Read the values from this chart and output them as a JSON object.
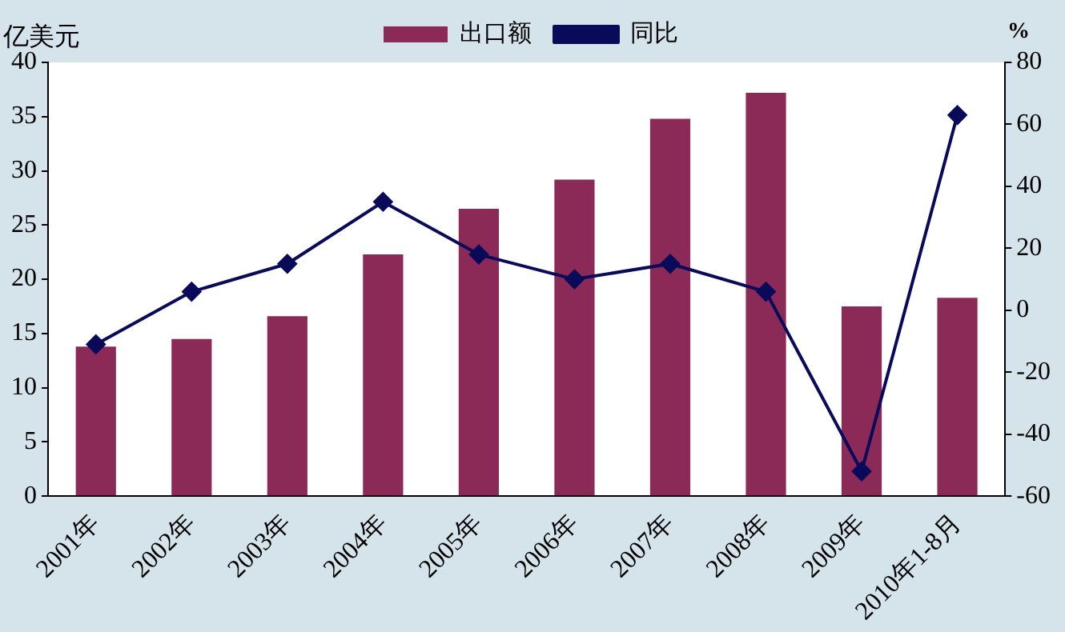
{
  "chart_data": {
    "type": "bar",
    "ylabel": "亿美元",
    "y2label": "%",
    "categories": [
      "2001年",
      "2002年",
      "2003年",
      "2004年",
      "2005年",
      "2006年",
      "2007年",
      "2008年",
      "2009年",
      "2010年1-8月"
    ],
    "series": [
      {
        "name": "出口额",
        "color": "#8b2a57",
        "values": [
          13.8,
          14.5,
          16.6,
          22.3,
          26.5,
          29.2,
          34.8,
          37.2,
          17.5,
          18.3
        ]
      },
      {
        "name": "同比",
        "type": "line",
        "axis": "y2",
        "color": "#0a0a5a",
        "values": [
          -11,
          6,
          15,
          35,
          18,
          10,
          15,
          6,
          -52,
          63
        ]
      }
    ],
    "ylim": [
      0,
      40
    ],
    "yticks": [
      0,
      5,
      10,
      15,
      20,
      25,
      30,
      35,
      40
    ],
    "y2lim": [
      -60,
      80
    ],
    "y2ticks": [
      -60,
      -40,
      -20,
      0,
      20,
      40,
      60,
      80
    ],
    "grid": false,
    "legend": "top",
    "marker": "diamond",
    "line_style": "solid"
  }
}
